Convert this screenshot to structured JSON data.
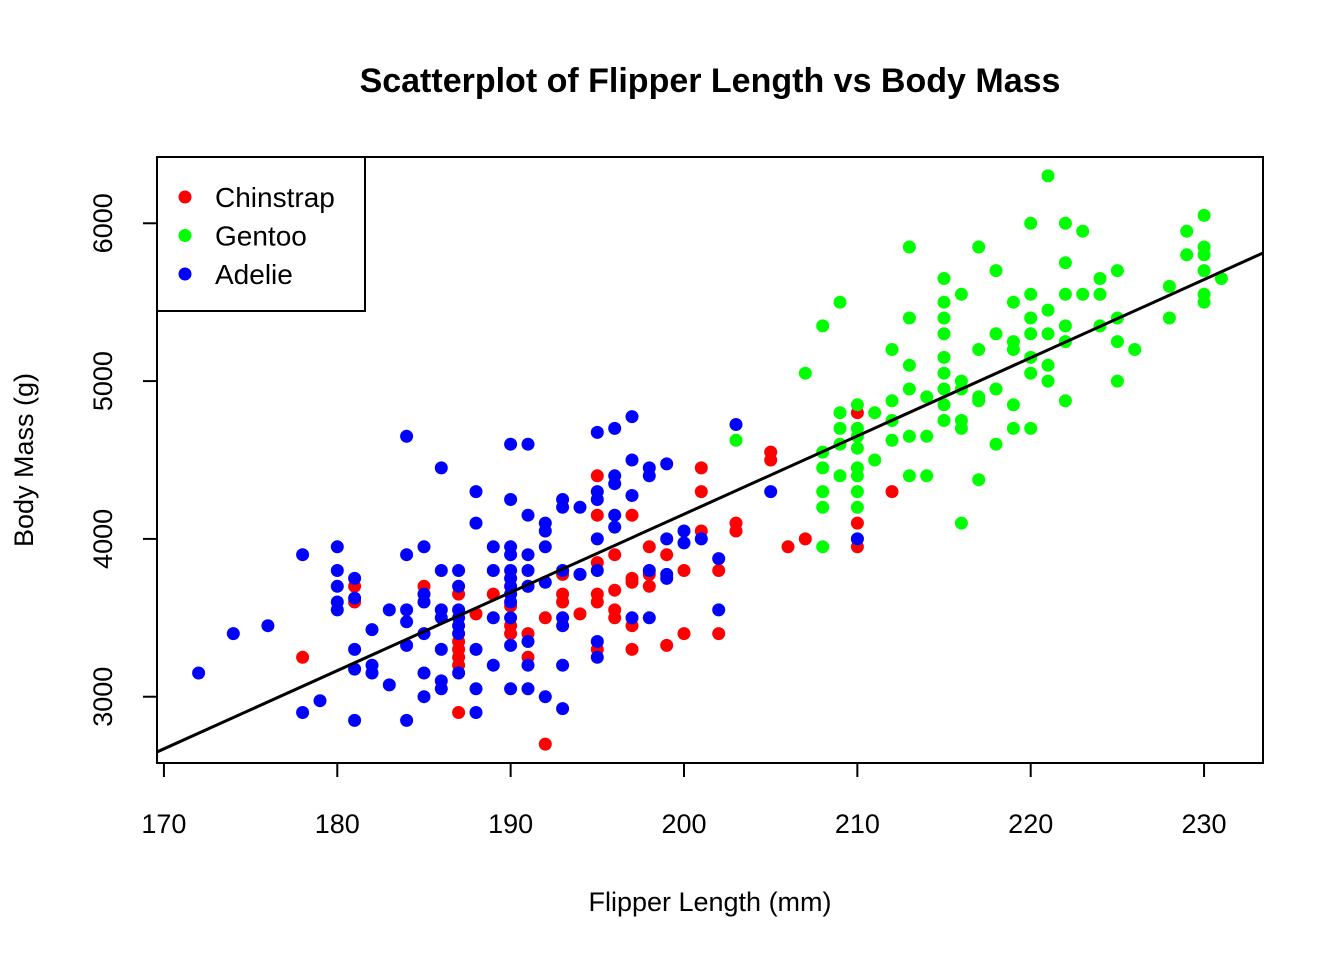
{
  "chart_data": {
    "type": "scatter",
    "title": "Scatterplot of Flipper Length vs Body Mass",
    "xlabel": "Flipper Length (mm)",
    "ylabel": "Body Mass (g)",
    "xlim": [
      169.6,
      233.4
    ],
    "ylim": [
      2580,
      6420
    ],
    "x_ticks": [
      170,
      180,
      190,
      200,
      210,
      220,
      230
    ],
    "y_ticks": [
      3000,
      4000,
      5000,
      6000
    ],
    "x_tick_labels": [
      "170",
      "180",
      "190",
      "200",
      "210",
      "220",
      "230"
    ],
    "y_tick_labels": [
      "3000",
      "4000",
      "5000",
      "6000"
    ],
    "grid": false,
    "legend": {
      "position": "top-left"
    },
    "colors": {
      "Chinstrap": "#ff0000",
      "Gentoo": "#00ff00",
      "Adelie": "#0000ff",
      "regression": "#000000"
    },
    "regression_line": {
      "x": [
        169.6,
        233.4
      ],
      "y": [
        2650,
        5812
      ]
    },
    "series": [
      {
        "name": "Chinstrap",
        "color": "#ff0000",
        "points": [
          [
            178,
            3250
          ],
          [
            181,
            3600
          ],
          [
            181,
            3700
          ],
          [
            185,
            3700
          ],
          [
            187,
            3200
          ],
          [
            187,
            3250
          ],
          [
            187,
            3300
          ],
          [
            187,
            3350
          ],
          [
            187,
            2900
          ],
          [
            187,
            3650
          ],
          [
            188,
            3525
          ],
          [
            189,
            3650
          ],
          [
            190,
            3400
          ],
          [
            190,
            3450
          ],
          [
            190,
            3575
          ],
          [
            191,
            3700
          ],
          [
            191,
            3250
          ],
          [
            191,
            3400
          ],
          [
            192,
            3500
          ],
          [
            192,
            2700
          ],
          [
            193,
            3775
          ],
          [
            193,
            3650
          ],
          [
            193,
            3600
          ],
          [
            194,
            3775
          ],
          [
            194,
            3525
          ],
          [
            195,
            3850
          ],
          [
            195,
            4150
          ],
          [
            195,
            4400
          ],
          [
            195,
            3600
          ],
          [
            195,
            3650
          ],
          [
            195,
            3300
          ],
          [
            196,
            3675
          ],
          [
            196,
            3500
          ],
          [
            196,
            3550
          ],
          [
            196,
            3900
          ],
          [
            197,
            3725
          ],
          [
            197,
            3750
          ],
          [
            197,
            3450
          ],
          [
            197,
            4150
          ],
          [
            197,
            3300
          ],
          [
            198,
            3950
          ],
          [
            198,
            3775
          ],
          [
            198,
            3700
          ],
          [
            199,
            3900
          ],
          [
            199,
            3325
          ],
          [
            200,
            3800
          ],
          [
            200,
            3400
          ],
          [
            201,
            4300
          ],
          [
            201,
            4050
          ],
          [
            201,
            4450
          ],
          [
            202,
            3800
          ],
          [
            202,
            3400
          ],
          [
            203,
            4050
          ],
          [
            203,
            4100
          ],
          [
            205,
            4500
          ],
          [
            205,
            4550
          ],
          [
            206,
            3950
          ],
          [
            207,
            4000
          ],
          [
            210,
            4800
          ],
          [
            210,
            4100
          ],
          [
            210,
            3950
          ],
          [
            212,
            4300
          ]
        ]
      },
      {
        "name": "Gentoo",
        "color": "#00ff00",
        "points": [
          [
            203,
            4625
          ],
          [
            207,
            5050
          ],
          [
            208,
            4450
          ],
          [
            208,
            4200
          ],
          [
            208,
            4300
          ],
          [
            208,
            3950
          ],
          [
            208,
            4550
          ],
          [
            208,
            5350
          ],
          [
            209,
            5500
          ],
          [
            209,
            4800
          ],
          [
            209,
            4700
          ],
          [
            209,
            4400
          ],
          [
            209,
            4600
          ],
          [
            210,
            4850
          ],
          [
            210,
            4700
          ],
          [
            210,
            4650
          ],
          [
            210,
            4575
          ],
          [
            210,
            4450
          ],
          [
            210,
            4400
          ],
          [
            210,
            4300
          ],
          [
            210,
            4200
          ],
          [
            210,
            4000
          ],
          [
            211,
            4800
          ],
          [
            211,
            4500
          ],
          [
            212,
            4750
          ],
          [
            212,
            4875
          ],
          [
            212,
            5200
          ],
          [
            212,
            4625
          ],
          [
            213,
            5850
          ],
          [
            213,
            5400
          ],
          [
            213,
            5100
          ],
          [
            213,
            4950
          ],
          [
            213,
            4650
          ],
          [
            213,
            4400
          ],
          [
            214,
            4650
          ],
          [
            214,
            4900
          ],
          [
            214,
            4400
          ],
          [
            215,
            5650
          ],
          [
            215,
            5500
          ],
          [
            215,
            5400
          ],
          [
            215,
            5300
          ],
          [
            215,
            5150
          ],
          [
            215,
            5050
          ],
          [
            215,
            4950
          ],
          [
            215,
            4850
          ],
          [
            215,
            4750
          ],
          [
            216,
            5550
          ],
          [
            216,
            5000
          ],
          [
            216,
            4950
          ],
          [
            216,
            4750
          ],
          [
            216,
            4700
          ],
          [
            216,
            4100
          ],
          [
            217,
            5850
          ],
          [
            217,
            5200
          ],
          [
            217,
            4900
          ],
          [
            217,
            4875
          ],
          [
            217,
            4375
          ],
          [
            218,
            5700
          ],
          [
            218,
            5300
          ],
          [
            218,
            4950
          ],
          [
            218,
            4600
          ],
          [
            219,
            5500
          ],
          [
            219,
            5250
          ],
          [
            219,
            5200
          ],
          [
            219,
            4850
          ],
          [
            219,
            4700
          ],
          [
            220,
            6000
          ],
          [
            220,
            5550
          ],
          [
            220,
            5400
          ],
          [
            220,
            5300
          ],
          [
            220,
            5150
          ],
          [
            220,
            5050
          ],
          [
            220,
            4700
          ],
          [
            221,
            6300
          ],
          [
            221,
            5450
          ],
          [
            221,
            5300
          ],
          [
            221,
            5100
          ],
          [
            221,
            5000
          ],
          [
            222,
            6000
          ],
          [
            222,
            5750
          ],
          [
            222,
            5550
          ],
          [
            222,
            5350
          ],
          [
            222,
            5250
          ],
          [
            222,
            4875
          ],
          [
            223,
            5950
          ],
          [
            223,
            5550
          ],
          [
            224,
            5650
          ],
          [
            224,
            5550
          ],
          [
            224,
            5350
          ],
          [
            225,
            5700
          ],
          [
            225,
            5400
          ],
          [
            225,
            5250
          ],
          [
            225,
            5000
          ],
          [
            226,
            5200
          ],
          [
            228,
            5600
          ],
          [
            228,
            5400
          ],
          [
            229,
            5950
          ],
          [
            229,
            5800
          ],
          [
            230,
            6050
          ],
          [
            230,
            5850
          ],
          [
            230,
            5800
          ],
          [
            230,
            5700
          ],
          [
            230,
            5550
          ],
          [
            230,
            5500
          ],
          [
            231,
            5650
          ]
        ]
      },
      {
        "name": "Adelie",
        "color": "#0000ff",
        "points": [
          [
            172,
            3150
          ],
          [
            174,
            3400
          ],
          [
            176,
            3450
          ],
          [
            178,
            3900
          ],
          [
            178,
            2900
          ],
          [
            179,
            2975
          ],
          [
            180,
            3950
          ],
          [
            180,
            3800
          ],
          [
            180,
            3700
          ],
          [
            180,
            3600
          ],
          [
            180,
            3550
          ],
          [
            181,
            3750
          ],
          [
            181,
            3625
          ],
          [
            181,
            3300
          ],
          [
            181,
            3175
          ],
          [
            181,
            2850
          ],
          [
            182,
            3425
          ],
          [
            182,
            3200
          ],
          [
            182,
            3150
          ],
          [
            183,
            3550
          ],
          [
            183,
            3075
          ],
          [
            184,
            4650
          ],
          [
            184,
            3900
          ],
          [
            184,
            3550
          ],
          [
            184,
            3475
          ],
          [
            184,
            3325
          ],
          [
            184,
            2850
          ],
          [
            185,
            3950
          ],
          [
            185,
            3650
          ],
          [
            185,
            3600
          ],
          [
            185,
            3400
          ],
          [
            185,
            3150
          ],
          [
            185,
            3000
          ],
          [
            186,
            4450
          ],
          [
            186,
            3800
          ],
          [
            186,
            3550
          ],
          [
            186,
            3500
          ],
          [
            186,
            3300
          ],
          [
            186,
            3100
          ],
          [
            186,
            3050
          ],
          [
            187,
            3800
          ],
          [
            187,
            3700
          ],
          [
            187,
            3550
          ],
          [
            187,
            3500
          ],
          [
            187,
            3450
          ],
          [
            187,
            3400
          ],
          [
            187,
            3150
          ],
          [
            188,
            4300
          ],
          [
            188,
            4100
          ],
          [
            188,
            3300
          ],
          [
            188,
            3050
          ],
          [
            188,
            2900
          ],
          [
            189,
            3950
          ],
          [
            189,
            3800
          ],
          [
            189,
            3500
          ],
          [
            189,
            3200
          ],
          [
            190,
            4600
          ],
          [
            190,
            4250
          ],
          [
            190,
            3950
          ],
          [
            190,
            3900
          ],
          [
            190,
            3800
          ],
          [
            190,
            3750
          ],
          [
            190,
            3700
          ],
          [
            190,
            3650
          ],
          [
            190,
            3600
          ],
          [
            190,
            3500
          ],
          [
            190,
            3325
          ],
          [
            190,
            3050
          ],
          [
            191,
            4600
          ],
          [
            191,
            4150
          ],
          [
            191,
            3900
          ],
          [
            191,
            3800
          ],
          [
            191,
            3700
          ],
          [
            191,
            3350
          ],
          [
            191,
            3200
          ],
          [
            191,
            3050
          ],
          [
            192,
            4100
          ],
          [
            192,
            4050
          ],
          [
            192,
            3950
          ],
          [
            192,
            3725
          ],
          [
            192,
            3000
          ],
          [
            193,
            4250
          ],
          [
            193,
            4200
          ],
          [
            193,
            3800
          ],
          [
            193,
            3500
          ],
          [
            193,
            3450
          ],
          [
            193,
            3200
          ],
          [
            193,
            2925
          ],
          [
            194,
            4200
          ],
          [
            194,
            3775
          ],
          [
            195,
            4675
          ],
          [
            195,
            4300
          ],
          [
            195,
            4250
          ],
          [
            195,
            4000
          ],
          [
            195,
            3800
          ],
          [
            195,
            3350
          ],
          [
            195,
            3250
          ],
          [
            196,
            4700
          ],
          [
            196,
            4400
          ],
          [
            196,
            4350
          ],
          [
            196,
            4150
          ],
          [
            196,
            4075
          ],
          [
            197,
            4775
          ],
          [
            197,
            4500
          ],
          [
            197,
            4275
          ],
          [
            197,
            3500
          ],
          [
            198,
            4450
          ],
          [
            198,
            4400
          ],
          [
            198,
            3800
          ],
          [
            198,
            3500
          ],
          [
            199,
            4475
          ],
          [
            199,
            4000
          ],
          [
            199,
            3775
          ],
          [
            199,
            3750
          ],
          [
            200,
            4050
          ],
          [
            200,
            3975
          ],
          [
            201,
            4000
          ],
          [
            202,
            3875
          ],
          [
            202,
            3550
          ],
          [
            203,
            4725
          ],
          [
            205,
            4300
          ],
          [
            210,
            4000
          ]
        ]
      }
    ]
  }
}
